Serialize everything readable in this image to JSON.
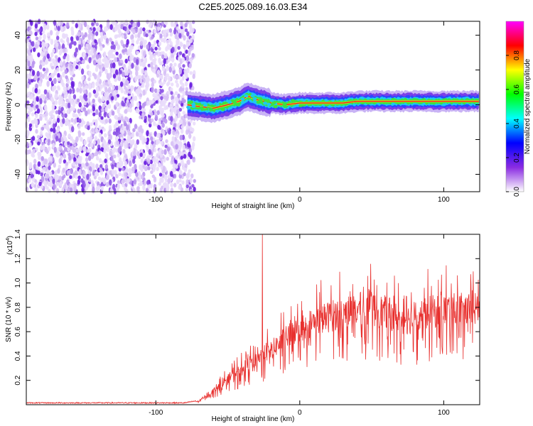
{
  "figure": {
    "title": "C2E5.2025.089.16.03.E34"
  },
  "chart_data": [
    {
      "type": "heatmap",
      "xlabel": "Height of straight line (km)",
      "ylabel": "Frequency (Hz)",
      "xlim": [
        -190,
        125
      ],
      "ylim": [
        -50,
        48
      ],
      "xticks": [
        -100,
        0,
        100
      ],
      "yticks": [
        -40,
        -20,
        0,
        20,
        40
      ],
      "noise_region_x": [
        -190,
        -73
      ],
      "signal_region_x": [
        -78,
        125
      ],
      "frequency_track": {
        "x": [
          -78,
          -70,
          -60,
          -50,
          -42,
          -36,
          -30,
          -20,
          -10,
          0,
          10,
          20,
          30,
          40,
          60,
          80,
          100,
          125
        ],
        "y": [
          0,
          -1,
          -2,
          0,
          2,
          5,
          3,
          1,
          0,
          1,
          1,
          1,
          1,
          2,
          2,
          2,
          2,
          2
        ]
      },
      "colorbar": {
        "label": "Normalized spectral amplitude",
        "range": [
          0,
          1
        ],
        "ticks": [
          "0.0",
          "0.2",
          "0.4",
          "0.6",
          "0.8"
        ],
        "colors": [
          "#ffffff",
          "#8a2be2",
          "#0000ff",
          "#00ffff",
          "#00ff00",
          "#ffff00",
          "#ff0000",
          "#ff00ff"
        ]
      }
    },
    {
      "type": "line",
      "xlabel": "Height of straight line (km)",
      "ylabel": "SNR (10 * v/v)",
      "multiplier": "(x10",
      "multiplier_exp": "4",
      "xlim": [
        -190,
        125
      ],
      "ylim": [
        0,
        1.4
      ],
      "xticks": [
        -100,
        0,
        100
      ],
      "yticks": [
        "0.2",
        "0.4",
        "0.6",
        "0.8",
        "1.0",
        "1.2",
        "1.4"
      ],
      "color": "#e8302e",
      "envelope": {
        "x": [
          -190,
          -80,
          -70,
          -65,
          -60,
          -50,
          -40,
          -35,
          -28,
          -20,
          -10,
          0,
          10,
          20,
          30,
          40,
          50,
          60,
          70,
          80,
          90,
          100,
          110,
          125
        ],
        "y": [
          0.01,
          0.01,
          0.03,
          0.08,
          0.12,
          0.22,
          0.3,
          0.35,
          0.4,
          0.46,
          0.56,
          0.64,
          0.7,
          0.74,
          0.78,
          0.8,
          0.8,
          0.78,
          0.72,
          0.72,
          0.78,
          0.8,
          0.8,
          0.8
        ]
      },
      "spike": {
        "x": -26,
        "y": 1.4
      }
    }
  ]
}
